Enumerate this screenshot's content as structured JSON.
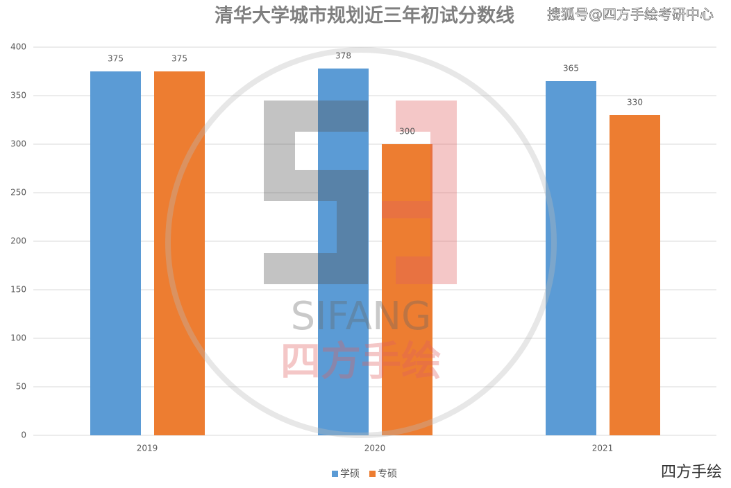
{
  "chart_data": {
    "type": "bar",
    "title": "清华大学城市规划近三年初试分数线",
    "categories": [
      "2019",
      "2020",
      "2021"
    ],
    "series": [
      {
        "name": "学硕",
        "color": "#5b9bd5",
        "values": [
          375,
          378,
          365
        ]
      },
      {
        "name": "专硕",
        "color": "#ed7d31",
        "values": [
          375,
          300,
          330
        ]
      }
    ],
    "ylim": [
      0,
      400
    ],
    "yticks": [
      0,
      50,
      100,
      150,
      200,
      250,
      300,
      350,
      400
    ],
    "grid": true,
    "legend": "bottom",
    "annotations": [
      "搜狐号@四方手绘考研中心",
      "SIFANG",
      "四方手绘",
      "四方手绘"
    ]
  }
}
